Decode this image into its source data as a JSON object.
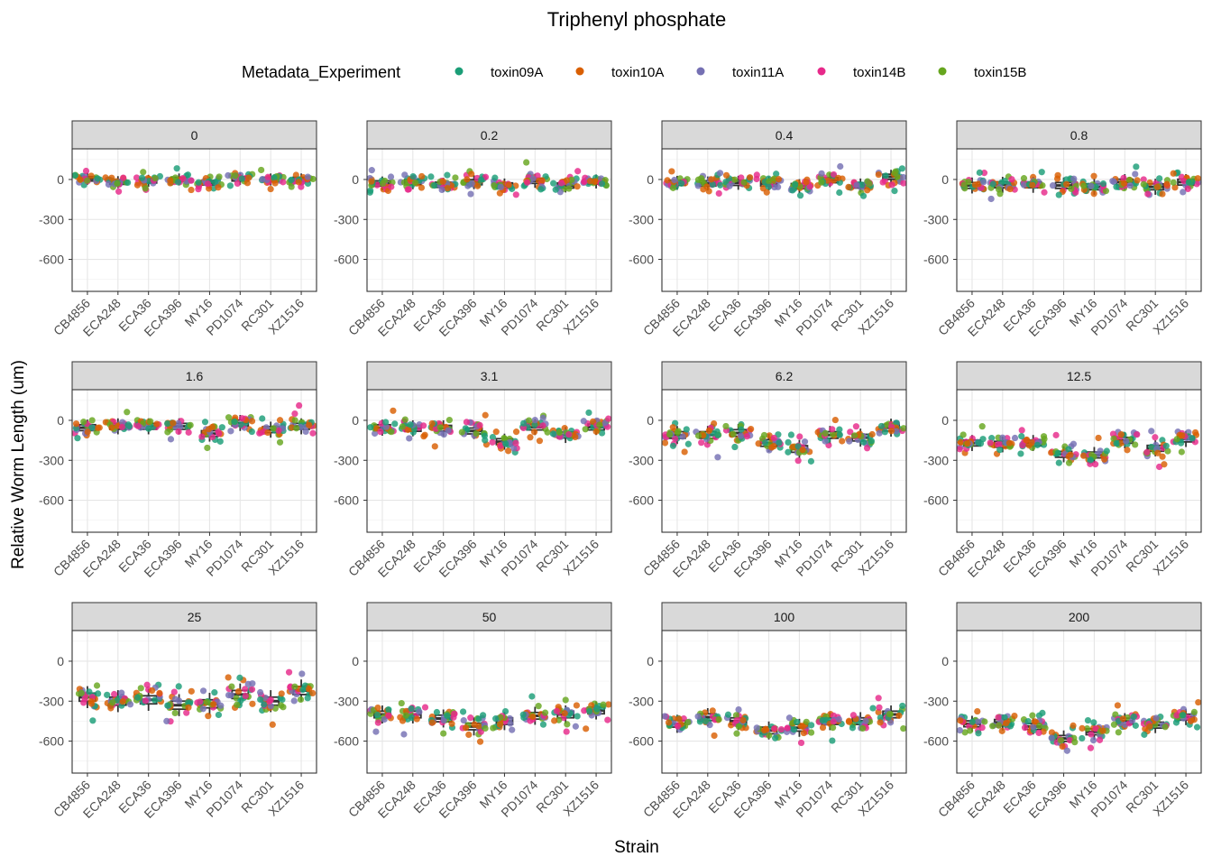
{
  "chart_data": {
    "type": "scatter",
    "subtype": "faceted jittered points with boxplots",
    "title": "Triphenyl phosphate",
    "xlabel": "Strain",
    "ylabel": "Relative Worm Length (um)",
    "ylim": [
      -840,
      230
    ],
    "yticks": [
      0,
      -300,
      -600
    ],
    "grid": true,
    "facet_layout": "3 rows x 4 columns",
    "legend": {
      "title": "Metadata_Experiment",
      "position": "top",
      "entries": [
        {
          "name": "toxin09A",
          "color": "#1B9E77"
        },
        {
          "name": "toxin10A",
          "color": "#D95F02"
        },
        {
          "name": "toxin11A",
          "color": "#7570B3"
        },
        {
          "name": "toxin14B",
          "color": "#E7298A"
        },
        {
          "name": "toxin15B",
          "color": "#66A61E"
        }
      ]
    },
    "categories": [
      "CB4856",
      "ECA248",
      "ECA36",
      "ECA396",
      "MY16",
      "PD1074",
      "RC301",
      "XZ1516"
    ],
    "facets": [
      {
        "label": "0",
        "medians": [
          5,
          -20,
          -10,
          0,
          -25,
          5,
          0,
          0
        ],
        "spread": 30
      },
      {
        "label": "0.2",
        "medians": [
          -30,
          -20,
          -40,
          -20,
          -45,
          -10,
          -45,
          -15
        ],
        "spread": 35
      },
      {
        "label": "0.4",
        "medians": [
          -25,
          -30,
          -25,
          -30,
          -50,
          -5,
          -45,
          20
        ],
        "spread": 35
      },
      {
        "label": "0.8",
        "medians": [
          -45,
          -40,
          -40,
          -45,
          -55,
          -20,
          -55,
          -20
        ],
        "spread": 40
      },
      {
        "label": "1.6",
        "medians": [
          -55,
          -45,
          -45,
          -45,
          -100,
          -20,
          -70,
          -45
        ],
        "spread": 40
      },
      {
        "label": "3.1",
        "medians": [
          -55,
          -60,
          -60,
          -80,
          -160,
          -50,
          -110,
          -50
        ],
        "spread": 40
      },
      {
        "label": "6.2",
        "medians": [
          -110,
          -110,
          -95,
          -170,
          -215,
          -110,
          -130,
          -55
        ],
        "spread": 45
      },
      {
        "label": "12.5",
        "medians": [
          -170,
          -180,
          -170,
          -255,
          -260,
          -150,
          -210,
          -140
        ],
        "spread": 40
      },
      {
        "label": "25",
        "medians": [
          -270,
          -300,
          -290,
          -330,
          -320,
          -250,
          -300,
          -220
        ],
        "spread": 55
      },
      {
        "label": "50",
        "medians": [
          -400,
          -400,
          -430,
          -490,
          -450,
          -410,
          -400,
          -370
        ],
        "spread": 45
      },
      {
        "label": "100",
        "medians": [
          -470,
          -420,
          -450,
          -520,
          -500,
          -450,
          -450,
          -400
        ],
        "spread": 45
      },
      {
        "label": "200",
        "medians": [
          -470,
          -460,
          -490,
          -580,
          -530,
          -450,
          -480,
          -420
        ],
        "spread": 40
      }
    ]
  }
}
